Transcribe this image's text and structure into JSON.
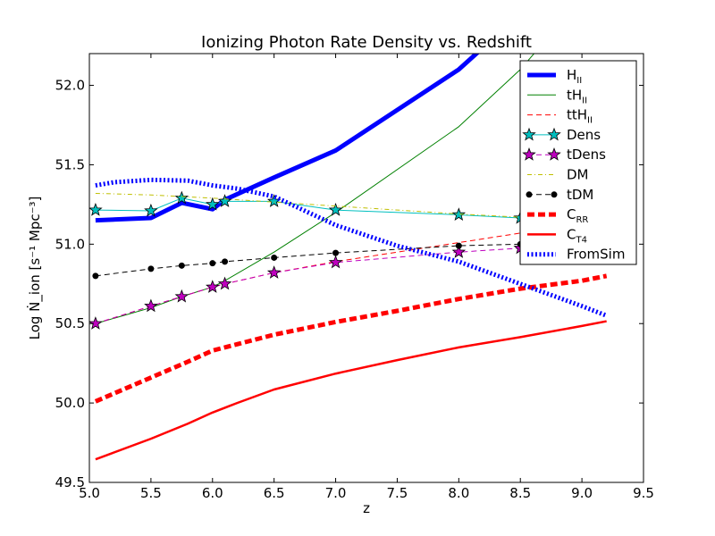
{
  "chart_data": {
    "type": "line",
    "title": "Ionizing Photon Rate Density vs. Redshift",
    "xlabel": "z",
    "ylabel": "Log Ṅ_ion [s⁻¹ Mpc⁻³]",
    "xlim": [
      5.0,
      9.5
    ],
    "ylim": [
      49.5,
      52.2
    ],
    "xticks": [
      "5.0",
      "5.5",
      "6.0",
      "6.5",
      "7.0",
      "7.5",
      "8.0",
      "8.5",
      "9.0",
      "9.5"
    ],
    "yticks": [
      "49.5",
      "50.0",
      "50.5",
      "51.0",
      "51.5",
      "52.0"
    ],
    "grid": false,
    "legend_position": "top-right",
    "series": [
      {
        "name": "H_II",
        "color": "#0000ff",
        "style": "solid",
        "width": 5,
        "marker": "none",
        "x": [
          5.05,
          5.5,
          5.75,
          6.0,
          6.1,
          6.5,
          7.0,
          8.0,
          8.5
        ],
        "y": [
          51.15,
          51.165,
          51.26,
          51.22,
          51.28,
          51.42,
          51.59,
          52.1,
          52.45
        ]
      },
      {
        "name": "tH_II",
        "color": "#008000",
        "style": "solid",
        "width": 1,
        "marker": "none",
        "x": [
          5.05,
          5.5,
          5.75,
          6.0,
          6.1,
          6.5,
          7.0,
          8.0,
          8.5,
          9.0
        ],
        "y": [
          50.5,
          50.6,
          50.67,
          50.73,
          50.77,
          50.95,
          51.2,
          51.74,
          52.1,
          52.55
        ]
      },
      {
        "name": "ttH_II",
        "color": "#ff0000",
        "style": "dashed",
        "width": 1,
        "marker": "none",
        "x": [
          5.05,
          5.5,
          5.75,
          6.0,
          6.1,
          6.5,
          7.0,
          8.0,
          8.5
        ],
        "y": [
          50.5,
          50.61,
          50.67,
          50.73,
          50.75,
          50.82,
          50.89,
          51.01,
          51.07
        ]
      },
      {
        "name": "Dens",
        "color": "#00bfbf",
        "style": "solid",
        "width": 1,
        "marker": "star",
        "marker_color": "#00bfbf",
        "x": [
          5.05,
          5.5,
          5.75,
          6.0,
          6.1,
          6.5,
          7.0,
          8.0,
          8.5
        ],
        "y": [
          51.215,
          51.21,
          51.29,
          51.25,
          51.27,
          51.27,
          51.215,
          51.185,
          51.165
        ]
      },
      {
        "name": "tDens",
        "color": "#bf00bf",
        "style": "dashed",
        "width": 1,
        "marker": "star",
        "marker_color": "#bf00bf",
        "x": [
          5.05,
          5.5,
          5.75,
          6.0,
          6.1,
          6.5,
          7.0,
          8.0,
          8.5
        ],
        "y": [
          50.5,
          50.61,
          50.67,
          50.73,
          50.75,
          50.82,
          50.885,
          50.95,
          50.975
        ]
      },
      {
        "name": "DM",
        "color": "#bfbf00",
        "style": "dashdot",
        "width": 1,
        "marker": "none",
        "x": [
          5.05,
          5.5,
          6.0,
          6.5,
          7.0,
          8.0,
          8.5
        ],
        "y": [
          51.32,
          51.31,
          51.29,
          51.265,
          51.24,
          51.19,
          51.17
        ]
      },
      {
        "name": "tDM",
        "color": "#000000",
        "style": "dashed",
        "width": 1,
        "marker": "dot",
        "marker_color": "#000000",
        "x": [
          5.05,
          5.5,
          5.75,
          6.0,
          6.1,
          6.5,
          7.0,
          8.0,
          8.5
        ],
        "y": [
          50.8,
          50.845,
          50.865,
          50.88,
          50.89,
          50.915,
          50.945,
          50.99,
          51.0
        ]
      },
      {
        "name": "C_RR",
        "color": "#ff0000",
        "style": "dashed-thick",
        "width": 5,
        "marker": "none",
        "x": [
          5.05,
          5.5,
          5.8,
          6.0,
          6.2,
          6.5,
          7.0,
          7.5,
          8.0,
          8.5,
          9.0,
          9.2
        ],
        "y": [
          50.01,
          50.16,
          50.26,
          50.33,
          50.37,
          50.43,
          50.51,
          50.58,
          50.655,
          50.72,
          50.77,
          50.8
        ]
      },
      {
        "name": "C_T4",
        "color": "#ff0000",
        "style": "solid",
        "width": 2.5,
        "marker": "none",
        "x": [
          5.05,
          5.5,
          5.8,
          6.0,
          6.2,
          6.5,
          7.0,
          7.5,
          8.0,
          8.5,
          9.0,
          9.2
        ],
        "y": [
          49.645,
          49.775,
          49.87,
          49.94,
          50.0,
          50.085,
          50.185,
          50.27,
          50.35,
          50.415,
          50.485,
          50.515
        ]
      },
      {
        "name": "FromSim",
        "color": "#0000ff",
        "style": "dotted-thick",
        "width": 5,
        "marker": "none",
        "x": [
          5.05,
          5.2,
          5.5,
          5.8,
          6.0,
          6.2,
          6.5,
          7.0,
          7.5,
          8.0,
          8.5,
          9.0,
          9.2
        ],
        "y": [
          51.37,
          51.39,
          51.405,
          51.4,
          51.37,
          51.35,
          51.3,
          51.12,
          50.99,
          50.89,
          50.75,
          50.61,
          50.55
        ]
      }
    ]
  }
}
